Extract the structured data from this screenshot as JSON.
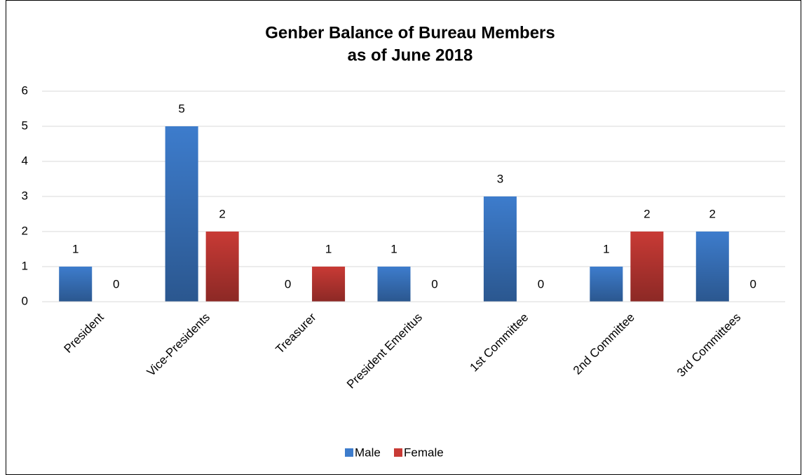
{
  "chart_data": {
    "type": "bar",
    "title": [
      "Genber Balance of Bureau Members",
      "as of June 2018"
    ],
    "categories": [
      "President",
      "Vice-Presidents",
      "Treasurer",
      "President Emeritus",
      "1st Committee",
      "2nd Committee",
      "3rd Committees"
    ],
    "series": [
      {
        "name": "Male",
        "color": "#3d7ccc",
        "values": [
          1,
          5,
          0,
          1,
          3,
          1,
          2
        ]
      },
      {
        "name": "Female",
        "color": "#c83a35",
        "values": [
          0,
          2,
          1,
          0,
          0,
          2,
          0
        ]
      }
    ],
    "ylim": [
      0,
      6
    ],
    "yticks": [
      0,
      1,
      2,
      3,
      4,
      5,
      6
    ],
    "grid": true,
    "legend": "bottom"
  }
}
